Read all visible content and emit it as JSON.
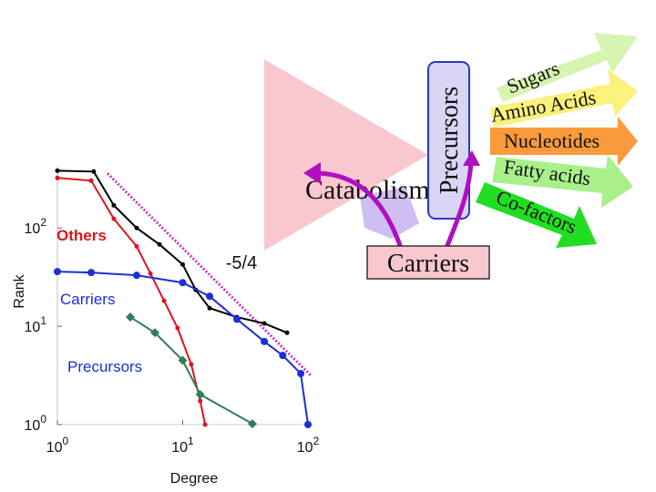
{
  "chart_data": {
    "type": "line",
    "x_label": "Degree",
    "y_label": "Rank",
    "log_x": true,
    "log_y": true,
    "xlim": [
      1,
      110
    ],
    "ylim": [
      1,
      420
    ],
    "xticks": [
      {
        "value": 1,
        "label": "10^0"
      },
      {
        "value": 10,
        "label": "10^1"
      },
      {
        "value": 100,
        "label": "10^2"
      }
    ],
    "yticks": [
      {
        "value": 1,
        "label": "10^0"
      },
      {
        "value": 10,
        "label": "10^1"
      },
      {
        "value": 100,
        "label": "10^2"
      }
    ],
    "series": [
      {
        "color": "#000000",
        "x": [
          1,
          1.95,
          2.82,
          4.29,
          6.53,
          10,
          12.7,
          16.4,
          27.1,
          44.8,
          68.1
        ],
        "values": [
          383,
          375,
          170,
          100,
          68,
          42.6,
          23.5,
          15.3,
          12.4,
          10.7,
          8.6
        ]
      },
      {
        "name": "Others",
        "color": "#e0131b",
        "label_color": "#e0131b",
        "x": [
          1,
          1.86,
          2.82,
          4.29,
          5.53,
          7.1,
          9.1,
          11.7,
          13.8,
          15.1
        ],
        "values": [
          323,
          303,
          124,
          65,
          34.4,
          18.2,
          9.6,
          4.1,
          1.74,
          1
        ]
      },
      {
        "name": "Carriers",
        "color": "#1a2fd6",
        "label_color": "#1a2fd6",
        "x": [
          1,
          1.86,
          4.29,
          10,
          16.4,
          27.1,
          44.8,
          62.9,
          87.6,
          100
        ],
        "values": [
          36,
          35.2,
          33,
          27.8,
          20.2,
          11.8,
          7.0,
          5.05,
          3.3,
          1
        ]
      },
      {
        "name": "Precursors",
        "color": "#2e7d5b",
        "label_color": "#1a2fd6",
        "x": [
          3.82,
          6.0,
          10,
          13.8,
          36
        ],
        "values": [
          12.4,
          8.6,
          4.5,
          2.02,
          1.02
        ]
      }
    ],
    "reference_line": {
      "label": "-5/4",
      "color": "#cc33cc",
      "x": [
        2.51,
        107
      ],
      "values": [
        359,
        3.1
      ]
    }
  },
  "diagram": {
    "catabolism": "Catabolism",
    "precursors": "Precursors",
    "carriers": "Carriers",
    "outputs": [
      "Sugars",
      "Amino Acids",
      "Nucleotides",
      "Fatty acids",
      "Co-factors"
    ]
  }
}
